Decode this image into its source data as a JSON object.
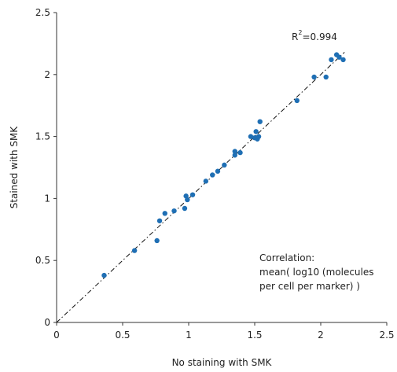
{
  "chart_data": {
    "type": "scatter",
    "xlabel": "No staining with SMK",
    "ylabel": "Stained with SMK",
    "xlim": [
      0,
      2.5
    ],
    "ylim": [
      0,
      2.5
    ],
    "xticks": [
      "0",
      "0.5",
      "1",
      "1.5",
      "2",
      "2.5"
    ],
    "yticks": [
      "0",
      "0.5",
      "1",
      "1.5",
      "2",
      "2.5"
    ],
    "grid": false,
    "legend": "none",
    "point_color": "#1f6fb4",
    "reference_line": {
      "style": "dash-dot",
      "x": [
        0,
        2.18
      ],
      "y": [
        0,
        2.18
      ]
    },
    "r2_label": {
      "base": "R",
      "sup": "2",
      "value": "=0.994"
    },
    "annotation": [
      "Correlation:",
      "mean( log10 (molecules",
      "per cell per marker) )"
    ],
    "points": [
      [
        0.36,
        0.38
      ],
      [
        0.59,
        0.58
      ],
      [
        0.76,
        0.66
      ],
      [
        0.78,
        0.82
      ],
      [
        0.82,
        0.88
      ],
      [
        0.89,
        0.9
      ],
      [
        0.97,
        0.92
      ],
      [
        0.98,
        1.02
      ],
      [
        0.99,
        0.99
      ],
      [
        1.03,
        1.03
      ],
      [
        1.13,
        1.14
      ],
      [
        1.18,
        1.19
      ],
      [
        1.22,
        1.22
      ],
      [
        1.27,
        1.27
      ],
      [
        1.35,
        1.38
      ],
      [
        1.35,
        1.35
      ],
      [
        1.39,
        1.37
      ],
      [
        1.47,
        1.5
      ],
      [
        1.5,
        1.49
      ],
      [
        1.51,
        1.54
      ],
      [
        1.52,
        1.48
      ],
      [
        1.53,
        1.5
      ],
      [
        1.54,
        1.62
      ],
      [
        1.82,
        1.79
      ],
      [
        1.95,
        1.98
      ],
      [
        2.04,
        1.98
      ],
      [
        2.08,
        2.12
      ],
      [
        2.12,
        2.16
      ],
      [
        2.14,
        2.14
      ],
      [
        2.17,
        2.12
      ]
    ]
  }
}
